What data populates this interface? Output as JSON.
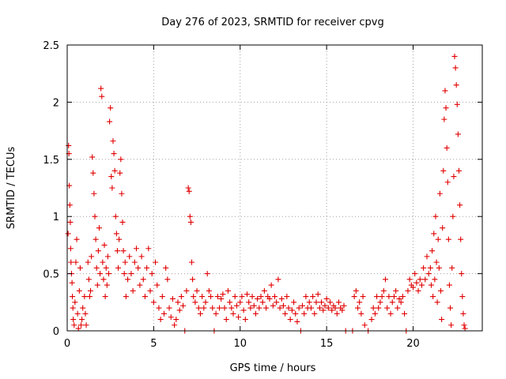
{
  "chart_data": {
    "type": "scatter",
    "title": "Day 276 of 2023, SRMTID for receiver cpvg",
    "xlabel": "GPS time / hours",
    "ylabel": "SRMTID / TECUs",
    "xlim": [
      0,
      24
    ],
    "ylim": [
      0,
      2.5
    ],
    "xticks": [
      0,
      5,
      10,
      15,
      20
    ],
    "xtick_labels": [
      "0",
      "5",
      "10",
      "15",
      "20"
    ],
    "yticks": [
      0,
      0.5,
      1,
      1.5,
      2,
      2.5
    ],
    "ytick_labels": [
      "0",
      "0.5",
      "1",
      "1.5",
      "2",
      "2.5"
    ],
    "grid": true,
    "marker": "+",
    "series_color": "#e00000",
    "series": [
      {
        "name": "SRMTID",
        "points": [
          [
            0.05,
            0.85
          ],
          [
            0.08,
            1.62
          ],
          [
            0.1,
            1.55
          ],
          [
            0.12,
            1.27
          ],
          [
            0.15,
            1.1
          ],
          [
            0.18,
            0.95
          ],
          [
            0.2,
            0.72
          ],
          [
            0.22,
            0.6
          ],
          [
            0.25,
            0.5
          ],
          [
            0.28,
            0.42
          ],
          [
            0.3,
            0.3
          ],
          [
            0.33,
            0.2
          ],
          [
            0.35,
            0.1
          ],
          [
            0.4,
            0.05
          ],
          [
            0.45,
            0.25
          ],
          [
            0.5,
            0.6
          ],
          [
            0.55,
            0.8
          ],
          [
            0.6,
            0.15
          ],
          [
            0.65,
            0.02
          ],
          [
            0.7,
            0.35
          ],
          [
            0.75,
            0.55
          ],
          [
            0.8,
            0.05
          ],
          [
            0.85,
            0.1
          ],
          [
            0.9,
            0.2
          ],
          [
            1.0,
            0.3
          ],
          [
            1.05,
            0.15
          ],
          [
            1.1,
            0.05
          ],
          [
            1.2,
            0.6
          ],
          [
            1.25,
            0.45
          ],
          [
            1.3,
            0.3
          ],
          [
            1.35,
            0.35
          ],
          [
            1.4,
            0.65
          ],
          [
            1.45,
            1.52
          ],
          [
            1.5,
            1.38
          ],
          [
            1.55,
            1.2
          ],
          [
            1.6,
            1.0
          ],
          [
            1.65,
            0.8
          ],
          [
            1.7,
            0.55
          ],
          [
            1.75,
            0.4
          ],
          [
            1.8,
            0.7
          ],
          [
            1.85,
            0.9
          ],
          [
            1.9,
            0.5
          ],
          [
            1.95,
            2.12
          ],
          [
            2.0,
            2.05
          ],
          [
            2.05,
            0.6
          ],
          [
            2.1,
            0.45
          ],
          [
            2.15,
            0.75
          ],
          [
            2.2,
            0.3
          ],
          [
            2.25,
            0.55
          ],
          [
            2.3,
            0.4
          ],
          [
            2.35,
            0.65
          ],
          [
            2.4,
            0.5
          ],
          [
            2.45,
            1.83
          ],
          [
            2.5,
            1.95
          ],
          [
            2.55,
            1.35
          ],
          [
            2.6,
            1.25
          ],
          [
            2.65,
            1.66
          ],
          [
            2.7,
            1.55
          ],
          [
            2.75,
            1.4
          ],
          [
            2.8,
            1.0
          ],
          [
            2.85,
            0.85
          ],
          [
            2.9,
            0.7
          ],
          [
            2.95,
            0.55
          ],
          [
            3.0,
            0.8
          ],
          [
            3.05,
            1.38
          ],
          [
            3.1,
            1.5
          ],
          [
            3.15,
            1.2
          ],
          [
            3.2,
            0.95
          ],
          [
            3.25,
            0.7
          ],
          [
            3.3,
            0.5
          ],
          [
            3.35,
            0.6
          ],
          [
            3.4,
            0.3
          ],
          [
            3.5,
            0.45
          ],
          [
            3.6,
            0.65
          ],
          [
            3.7,
            0.5
          ],
          [
            3.8,
            0.35
          ],
          [
            3.9,
            0.6
          ],
          [
            4.0,
            0.72
          ],
          [
            4.1,
            0.55
          ],
          [
            4.2,
            0.4
          ],
          [
            4.3,
            0.65
          ],
          [
            4.4,
            0.45
          ],
          [
            4.5,
            0.3
          ],
          [
            4.6,
            0.55
          ],
          [
            4.7,
            0.72
          ],
          [
            4.8,
            0.35
          ],
          [
            4.9,
            0.5
          ],
          [
            5.0,
            0.25
          ],
          [
            5.1,
            0.6
          ],
          [
            5.2,
            0.4
          ],
          [
            5.3,
            0.2
          ],
          [
            5.4,
            0.1
          ],
          [
            5.5,
            0.3
          ],
          [
            5.6,
            0.15
          ],
          [
            5.7,
            0.55
          ],
          [
            5.8,
            0.45
          ],
          [
            5.9,
            0.2
          ],
          [
            6.0,
            0.12
          ],
          [
            6.1,
            0.28
          ],
          [
            6.2,
            0.05
          ],
          [
            6.3,
            0.1
          ],
          [
            6.4,
            0.25
          ],
          [
            6.5,
            0.18
          ],
          [
            6.6,
            0.3
          ],
          [
            6.7,
            0.22
          ],
          [
            6.8,
            0.0
          ],
          [
            6.9,
            0.35
          ],
          [
            7.0,
            1.25
          ],
          [
            7.05,
            1.22
          ],
          [
            7.1,
            1.0
          ],
          [
            7.15,
            0.95
          ],
          [
            7.2,
            0.6
          ],
          [
            7.25,
            0.45
          ],
          [
            7.3,
            0.3
          ],
          [
            7.4,
            0.25
          ],
          [
            7.5,
            0.35
          ],
          [
            7.6,
            0.2
          ],
          [
            7.7,
            0.15
          ],
          [
            7.8,
            0.3
          ],
          [
            7.9,
            0.2
          ],
          [
            8.0,
            0.25
          ],
          [
            8.1,
            0.5
          ],
          [
            8.2,
            0.35
          ],
          [
            8.3,
            0.3
          ],
          [
            8.4,
            0.2
          ],
          [
            8.5,
            0.0
          ],
          [
            8.6,
            0.15
          ],
          [
            8.7,
            0.3
          ],
          [
            8.8,
            0.2
          ],
          [
            8.9,
            0.28
          ],
          [
            9.0,
            0.32
          ],
          [
            9.1,
            0.2
          ],
          [
            9.2,
            0.1
          ],
          [
            9.3,
            0.35
          ],
          [
            9.4,
            0.25
          ],
          [
            9.5,
            0.2
          ],
          [
            9.6,
            0.15
          ],
          [
            9.7,
            0.3
          ],
          [
            9.8,
            0.22
          ],
          [
            9.9,
            0.12
          ],
          [
            10.0,
            0.25
          ],
          [
            10.1,
            0.3
          ],
          [
            10.2,
            0.18
          ],
          [
            10.3,
            0.1
          ],
          [
            10.4,
            0.32
          ],
          [
            10.5,
            0.25
          ],
          [
            10.6,
            0.2
          ],
          [
            10.7,
            0.3
          ],
          [
            10.8,
            0.22
          ],
          [
            10.9,
            0.15
          ],
          [
            11.0,
            0.28
          ],
          [
            11.1,
            0.2
          ],
          [
            11.2,
            0.3
          ],
          [
            11.3,
            0.25
          ],
          [
            11.4,
            0.35
          ],
          [
            11.5,
            0.2
          ],
          [
            11.6,
            0.3
          ],
          [
            11.7,
            0.28
          ],
          [
            11.8,
            0.4
          ],
          [
            11.9,
            0.22
          ],
          [
            12.0,
            0.3
          ],
          [
            12.1,
            0.25
          ],
          [
            12.2,
            0.45
          ],
          [
            12.3,
            0.2
          ],
          [
            12.4,
            0.28
          ],
          [
            12.5,
            0.22
          ],
          [
            12.6,
            0.15
          ],
          [
            12.7,
            0.3
          ],
          [
            12.8,
            0.2
          ],
          [
            12.9,
            0.1
          ],
          [
            13.0,
            0.18
          ],
          [
            13.1,
            0.25
          ],
          [
            13.2,
            0.15
          ],
          [
            13.3,
            0.08
          ],
          [
            13.4,
            0.2
          ],
          [
            13.5,
            0.0
          ],
          [
            13.6,
            0.22
          ],
          [
            13.7,
            0.15
          ],
          [
            13.8,
            0.3
          ],
          [
            13.9,
            0.2
          ],
          [
            14.0,
            0.25
          ],
          [
            14.1,
            0.2
          ],
          [
            14.2,
            0.3
          ],
          [
            14.3,
            0.15
          ],
          [
            14.4,
            0.25
          ],
          [
            14.5,
            0.32
          ],
          [
            14.6,
            0.2
          ],
          [
            14.7,
            0.25
          ],
          [
            14.8,
            0.18
          ],
          [
            14.9,
            0.22
          ],
          [
            15.0,
            0.28
          ],
          [
            15.1,
            0.2
          ],
          [
            15.2,
            0.25
          ],
          [
            15.3,
            0.18
          ],
          [
            15.4,
            0.22
          ],
          [
            15.5,
            0.2
          ],
          [
            15.6,
            0.15
          ],
          [
            15.7,
            0.25
          ],
          [
            15.8,
            0.2
          ],
          [
            15.9,
            0.18
          ],
          [
            16.0,
            0.22
          ],
          [
            16.1,
            0.0
          ],
          [
            16.5,
            0.0
          ],
          [
            16.6,
            0.3
          ],
          [
            16.7,
            0.35
          ],
          [
            16.8,
            0.2
          ],
          [
            16.9,
            0.25
          ],
          [
            17.0,
            0.15
          ],
          [
            17.1,
            0.3
          ],
          [
            17.2,
            0.05
          ],
          [
            17.4,
            0.0
          ],
          [
            17.6,
            0.1
          ],
          [
            17.7,
            0.2
          ],
          [
            17.8,
            0.15
          ],
          [
            17.9,
            0.3
          ],
          [
            18.0,
            0.2
          ],
          [
            18.1,
            0.25
          ],
          [
            18.2,
            0.3
          ],
          [
            18.3,
            0.35
          ],
          [
            18.4,
            0.45
          ],
          [
            18.5,
            0.2
          ],
          [
            18.6,
            0.3
          ],
          [
            18.7,
            0.15
          ],
          [
            18.8,
            0.25
          ],
          [
            18.9,
            0.3
          ],
          [
            19.0,
            0.35
          ],
          [
            19.1,
            0.2
          ],
          [
            19.2,
            0.28
          ],
          [
            19.3,
            0.25
          ],
          [
            19.4,
            0.3
          ],
          [
            19.5,
            0.15
          ],
          [
            19.6,
            0.0
          ],
          [
            19.7,
            0.35
          ],
          [
            19.8,
            0.45
          ],
          [
            19.9,
            0.4
          ],
          [
            20.0,
            0.38
          ],
          [
            20.1,
            0.5
          ],
          [
            20.2,
            0.42
          ],
          [
            20.3,
            0.35
          ],
          [
            20.4,
            0.45
          ],
          [
            20.5,
            0.4
          ],
          [
            20.6,
            0.55
          ],
          [
            20.7,
            0.45
          ],
          [
            20.8,
            0.65
          ],
          [
            20.9,
            0.5
          ],
          [
            21.0,
            0.55
          ],
          [
            21.05,
            0.4
          ],
          [
            21.1,
            0.7
          ],
          [
            21.15,
            0.3
          ],
          [
            21.2,
            0.85
          ],
          [
            21.25,
            0.45
          ],
          [
            21.3,
            1.0
          ],
          [
            21.35,
            0.6
          ],
          [
            21.4,
            0.25
          ],
          [
            21.45,
            0.8
          ],
          [
            21.5,
            0.55
          ],
          [
            21.55,
            1.2
          ],
          [
            21.6,
            0.35
          ],
          [
            21.65,
            0.1
          ],
          [
            21.7,
            0.9
          ],
          [
            21.75,
            1.4
          ],
          [
            21.8,
            1.85
          ],
          [
            21.85,
            2.1
          ],
          [
            21.9,
            1.95
          ],
          [
            21.95,
            1.6
          ],
          [
            22.0,
            1.3
          ],
          [
            22.05,
            0.8
          ],
          [
            22.1,
            0.4
          ],
          [
            22.15,
            0.2
          ],
          [
            22.2,
            0.05
          ],
          [
            22.25,
            0.55
          ],
          [
            22.3,
            1.0
          ],
          [
            22.35,
            1.35
          ],
          [
            22.4,
            2.4
          ],
          [
            22.45,
            2.3
          ],
          [
            22.5,
            2.15
          ],
          [
            22.55,
            1.98
          ],
          [
            22.6,
            1.72
          ],
          [
            22.65,
            1.4
          ],
          [
            22.7,
            1.1
          ],
          [
            22.75,
            0.8
          ],
          [
            22.8,
            0.5
          ],
          [
            22.85,
            0.3
          ],
          [
            22.9,
            0.15
          ],
          [
            22.95,
            0.05
          ],
          [
            23.0,
            0.02
          ]
        ]
      }
    ]
  }
}
